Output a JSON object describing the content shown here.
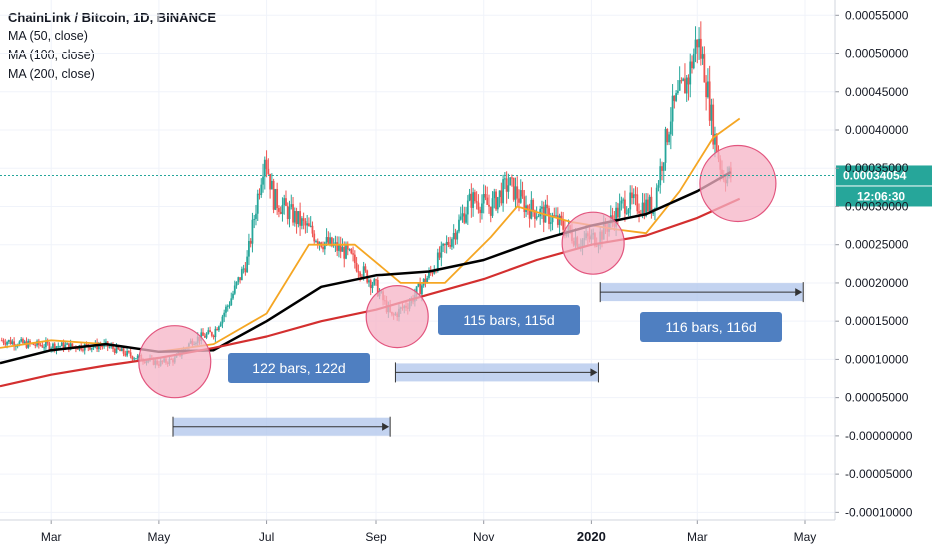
{
  "header": {
    "title": "ChainLink / Bitcoin, 1D, BINANCE",
    "indicators": [
      "MA (50, close)",
      "MA (100, close)",
      "MA (200, close)"
    ]
  },
  "colors": {
    "up": "#26a69a",
    "down": "#ef5350",
    "ma50": "#f5a623",
    "ma100": "#000000",
    "ma200": "#d32f2f",
    "last_price_line": "#26a69a",
    "callout_fill": "#4f7fc1",
    "range_fill": "#b4c8ec",
    "circle_fill": "#f5b3c5",
    "circle_stroke": "#e2557e"
  },
  "price_tag": {
    "value": "0.00034054",
    "countdown": "12:06:30"
  },
  "annotations": {
    "callouts": [
      {
        "text": "122 bars, 122d"
      },
      {
        "text": "115 bars, 115d"
      },
      {
        "text": "116 bars, 116d"
      }
    ]
  },
  "chart_data": {
    "type": "candlestick",
    "symbol": "ChainLink / Bitcoin",
    "interval": "1D",
    "exchange": "BINANCE",
    "y_axis": {
      "ticks": [
        "0.00055000",
        "0.00050000",
        "0.00045000",
        "0.00040000",
        "0.00035000",
        "0.00030000",
        "0.00025000",
        "0.00020000",
        "0.00015000",
        "0.00010000",
        "0.00005000",
        "-0.00000000",
        "-0.00005000",
        "-0.00010000"
      ],
      "ylim": [
        -0.00011,
        0.00057
      ]
    },
    "x_axis": {
      "ticks": [
        "Mar",
        "May",
        "Jul",
        "Sep",
        "Nov",
        "2020",
        "Mar",
        "May"
      ],
      "range": [
        "2019-01-31",
        "2020-05-18"
      ]
    },
    "series": [
      {
        "name": "Close (approx.)",
        "points": [
          [
            "2019-02-01",
            0.000125
          ],
          [
            "2019-02-15",
            0.00012
          ],
          [
            "2019-03-01",
            0.000118
          ],
          [
            "2019-03-15",
            0.000117
          ],
          [
            "2019-04-01",
            0.000118
          ],
          [
            "2019-04-15",
            0.000105
          ],
          [
            "2019-05-01",
            9.5e-05
          ],
          [
            "2019-05-10",
            0.0001
          ],
          [
            "2019-05-20",
            0.000125
          ],
          [
            "2019-06-01",
            0.000135
          ],
          [
            "2019-06-10",
            0.000175
          ],
          [
            "2019-06-20",
            0.00023
          ],
          [
            "2019-06-30",
            0.00037
          ],
          [
            "2019-07-05",
            0.00031
          ],
          [
            "2019-07-15",
            0.00029
          ],
          [
            "2019-08-01",
            0.000255
          ],
          [
            "2019-08-15",
            0.00024
          ],
          [
            "2019-09-01",
            0.000195
          ],
          [
            "2019-09-10",
            0.000155
          ],
          [
            "2019-09-20",
            0.000175
          ],
          [
            "2019-10-01",
            0.00021
          ],
          [
            "2019-10-15",
            0.000265
          ],
          [
            "2019-10-25",
            0.00031
          ],
          [
            "2019-11-05",
            0.0003
          ],
          [
            "2019-11-15",
            0.00033
          ],
          [
            "2019-11-25",
            0.0003
          ],
          [
            "2019-12-10",
            0.000285
          ],
          [
            "2019-12-25",
            0.000255
          ],
          [
            "2020-01-05",
            0.00026
          ],
          [
            "2020-01-20",
            0.000305
          ],
          [
            "2020-02-05",
            0.0003
          ],
          [
            "2020-02-15",
            0.00042
          ],
          [
            "2020-02-25",
            0.00047
          ],
          [
            "2020-03-01",
            0.00052
          ],
          [
            "2020-03-05",
            0.00048
          ],
          [
            "2020-03-10",
            0.0004
          ],
          [
            "2020-03-15",
            0.000345
          ],
          [
            "2020-03-20",
            0.00034
          ]
        ]
      },
      {
        "name": "MA (50, close)",
        "points": [
          [
            "2019-01-31",
            0.000115
          ],
          [
            "2019-03-01",
            0.000125
          ],
          [
            "2019-04-01",
            0.00012
          ],
          [
            "2019-05-01",
            0.00011
          ],
          [
            "2019-06-01",
            0.00012
          ],
          [
            "2019-07-01",
            0.00016
          ],
          [
            "2019-07-25",
            0.00025
          ],
          [
            "2019-08-20",
            0.00025
          ],
          [
            "2019-09-15",
            0.0002
          ],
          [
            "2019-10-10",
            0.0002
          ],
          [
            "2019-11-05",
            0.00026
          ],
          [
            "2019-11-20",
            0.0003
          ],
          [
            "2019-12-20",
            0.00028
          ],
          [
            "2020-01-15",
            0.00027
          ],
          [
            "2020-02-01",
            0.000265
          ],
          [
            "2020-02-20",
            0.00032
          ],
          [
            "2020-03-10",
            0.00039
          ],
          [
            "2020-03-25",
            0.000415
          ]
        ]
      },
      {
        "name": "MA (100, close)",
        "points": [
          [
            "2019-01-31",
            9.5e-05
          ],
          [
            "2019-03-01",
            0.000112
          ],
          [
            "2019-04-01",
            0.00012
          ],
          [
            "2019-05-01",
            0.00011
          ],
          [
            "2019-06-01",
            0.000112
          ],
          [
            "2019-07-01",
            0.00015
          ],
          [
            "2019-08-01",
            0.000195
          ],
          [
            "2019-09-01",
            0.00021
          ],
          [
            "2019-10-01",
            0.000215
          ],
          [
            "2019-11-01",
            0.00023
          ],
          [
            "2019-12-01",
            0.000255
          ],
          [
            "2020-01-01",
            0.000275
          ],
          [
            "2020-02-01",
            0.00029
          ],
          [
            "2020-03-01",
            0.00032
          ],
          [
            "2020-03-20",
            0.000345
          ]
        ]
      },
      {
        "name": "MA (200, close)",
        "points": [
          [
            "2019-01-31",
            6.5e-05
          ],
          [
            "2019-03-01",
            8e-05
          ],
          [
            "2019-04-01",
            9.2e-05
          ],
          [
            "2019-05-01",
            0.000102
          ],
          [
            "2019-06-01",
            0.000115
          ],
          [
            "2019-07-01",
            0.00013
          ],
          [
            "2019-08-01",
            0.00015
          ],
          [
            "2019-09-01",
            0.000165
          ],
          [
            "2019-10-01",
            0.000185
          ],
          [
            "2019-11-01",
            0.000205
          ],
          [
            "2019-12-01",
            0.00023
          ],
          [
            "2020-01-01",
            0.00025
          ],
          [
            "2020-02-01",
            0.000262
          ],
          [
            "2020-03-01",
            0.000285
          ],
          [
            "2020-03-25",
            0.00031
          ]
        ]
      }
    ],
    "ranges": [
      {
        "label": "122 bars, 122d",
        "start": "2019-05-09",
        "end": "2019-09-09",
        "y": 1.2e-05
      },
      {
        "label": "115 bars, 115d",
        "start": "2019-09-12",
        "end": "2020-01-05",
        "y": 8.3e-05
      },
      {
        "label": "116 bars, 116d",
        "start": "2020-01-06",
        "end": "2020-04-30",
        "y": 0.000188
      }
    ],
    "highlight_circles": [
      {
        "date": "2019-05-10",
        "value": 9.7e-05
      },
      {
        "date": "2019-09-13",
        "value": 0.000156
      },
      {
        "date": "2020-01-02",
        "value": 0.000252
      },
      {
        "date": "2020-03-24",
        "value": 0.00033
      }
    ],
    "last_price": 0.00034054,
    "grid": true,
    "legend_position": "top-left"
  }
}
